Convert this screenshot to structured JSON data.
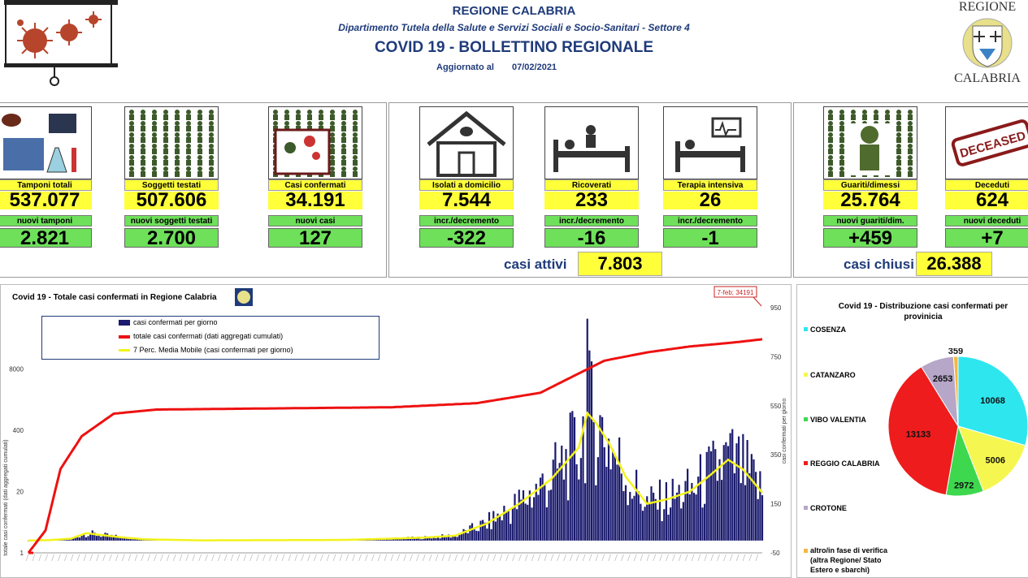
{
  "header": {
    "region": "REGIONE CALABRIA",
    "department": "Dipartimento Tutela della Salute e Servizi Sociali e Socio-Sanitari - Settore 4",
    "title": "COVID 19 - BOLLETTINO REGIONALE",
    "updated_label": "Aggiornato al",
    "updated_date": "07/02/2021",
    "logo_top": "REGIONE",
    "logo_bottom": "CALABRIA"
  },
  "tiles": [
    {
      "label": "Tamponi totali",
      "value": "537.077",
      "sub_label": "nuovi tamponi",
      "delta": "2.821"
    },
    {
      "label": "Soggetti testati",
      "value": "507.606",
      "sub_label": "nuovi soggetti testati",
      "delta": "2.700"
    },
    {
      "label": "Casi confermati",
      "value": "34.191",
      "sub_label": "nuovi casi",
      "delta": "127"
    },
    {
      "label": "Isolati a domicilio",
      "value": "7.544",
      "sub_label": "incr./decremento",
      "delta": "-322"
    },
    {
      "label": "Ricoverati",
      "value": "233",
      "sub_label": "incr./decremento",
      "delta": "-16"
    },
    {
      "label": "Terapia intensiva",
      "value": "26",
      "sub_label": "incr./decremento",
      "delta": "-1"
    },
    {
      "label": "Guariti/dimessi",
      "value": "25.764",
      "sub_label": "nuovi guariti/dim.",
      "delta": "+459"
    },
    {
      "label": "Deceduti",
      "value": "624",
      "sub_label": "nuovi deceduti",
      "delta": "+7"
    }
  ],
  "deceased_stamp": "DECEASED",
  "summary": {
    "active_label": "casi attivi",
    "active_value": "7.803",
    "closed_label": "casi chiusi",
    "closed_value": "26.388"
  },
  "chart_data": [
    {
      "type": "line",
      "title": "Covid 19 - Totale casi confermati in Regione Calabria",
      "ylabel_left": "totale casi confermati (dati aggregati cumulati)",
      "ylabel_right": "casi confermati per giorno",
      "left_ticks": [
        "1",
        "20",
        "400",
        "8000"
      ],
      "right_ticks": [
        "-50",
        "150",
        "350",
        "550",
        "750",
        "950"
      ],
      "right_ylim": [
        -50,
        950
      ],
      "annotation": "7-feb; 34191",
      "legend": [
        "casi confermati per giorno",
        "totale casi confermati (dati aggregati cumulati)",
        "7 Perc. Media Mobile (casi confermati per giorno)"
      ],
      "series_colors": {
        "daily": "#1a1a6e",
        "cumulative": "#ee1111",
        "moving_avg": "#f3f31a"
      },
      "cumulative_keypoints": [
        [
          0,
          1
        ],
        [
          8,
          3
        ],
        [
          15,
          60
        ],
        [
          25,
          300
        ],
        [
          40,
          900
        ],
        [
          60,
          1100
        ],
        [
          120,
          1170
        ],
        [
          170,
          1230
        ],
        [
          210,
          1500
        ],
        [
          240,
          2500
        ],
        [
          255,
          5500
        ],
        [
          270,
          12000
        ],
        [
          290,
          18000
        ],
        [
          310,
          24000
        ],
        [
          330,
          29000
        ],
        [
          344,
          34191
        ]
      ],
      "daily_keypoints": [
        [
          0,
          0
        ],
        [
          10,
          2
        ],
        [
          20,
          8
        ],
        [
          27,
          30
        ],
        [
          35,
          22
        ],
        [
          45,
          12
        ],
        [
          55,
          5
        ],
        [
          80,
          1
        ],
        [
          130,
          2
        ],
        [
          150,
          3
        ],
        [
          170,
          8
        ],
        [
          185,
          12
        ],
        [
          200,
          20
        ],
        [
          215,
          70
        ],
        [
          230,
          150
        ],
        [
          245,
          250
        ],
        [
          258,
          380
        ],
        [
          262,
          520
        ],
        [
          266,
          480
        ],
        [
          272,
          400
        ],
        [
          280,
          260
        ],
        [
          290,
          150
        ],
        [
          300,
          170
        ],
        [
          310,
          200
        ],
        [
          320,
          270
        ],
        [
          328,
          330
        ],
        [
          335,
          290
        ],
        [
          344,
          195
        ]
      ],
      "daily_peak_day": 262,
      "daily_peak_value": 905
    },
    {
      "type": "pie",
      "title": "Covid 19 - Distribuzione casi confermati per provinicia",
      "categories": [
        "COSENZA",
        "CATANZARO",
        "VIBO VALENTIA",
        "REGGIO CALABRIA",
        "CROTONE",
        "altro/in fase di verifica (altra Regione/ Stato Estero e sbarchi)"
      ],
      "values": [
        10068,
        5006,
        2972,
        13133,
        2653,
        359
      ],
      "colors": [
        "#2ee6ee",
        "#f6f651",
        "#3ed84e",
        "#ee1c1c",
        "#b6a6c8",
        "#f6b640"
      ]
    }
  ]
}
